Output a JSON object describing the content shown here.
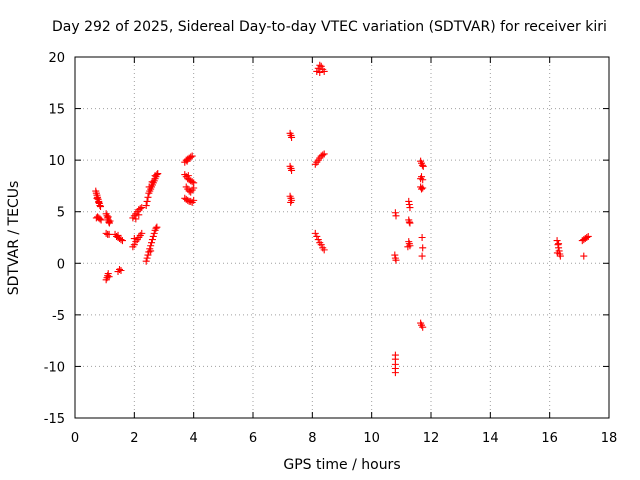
{
  "chart_data": {
    "type": "scatter",
    "title": "Day 292 of 2025, Sidereal Day-to-day VTEC variation (SDTVAR) for receiver kiri",
    "xlabel": "GPS time / hours",
    "ylabel": "SDTVAR / TECUs",
    "xlim": [
      0,
      18
    ],
    "ylim": [
      -15,
      20
    ],
    "xticks": [
      "0",
      "2",
      "4",
      "6",
      "8",
      "10",
      "12",
      "14",
      "16",
      "18"
    ],
    "yticks": [
      "-15",
      "-10",
      "-5",
      "0",
      "5",
      "10",
      "15",
      "20"
    ],
    "grid": true,
    "marker": "plus",
    "color": "#ff0000",
    "series": [
      {
        "points": [
          [
            0.7,
            7.0
          ],
          [
            0.72,
            6.8
          ],
          [
            0.74,
            6.6
          ],
          [
            0.76,
            6.4
          ],
          [
            0.78,
            6.2
          ],
          [
            0.8,
            6.0
          ],
          [
            0.82,
            5.8
          ],
          [
            0.84,
            5.6
          ],
          [
            0.86,
            5.5
          ],
          [
            0.74,
            6.3
          ],
          [
            0.8,
            5.9
          ],
          [
            0.72,
            4.4
          ],
          [
            0.76,
            4.5
          ],
          [
            0.8,
            4.4
          ],
          [
            0.84,
            4.3
          ],
          [
            0.88,
            4.2
          ],
          [
            1.05,
            4.8
          ],
          [
            1.08,
            4.6
          ],
          [
            1.1,
            4.4
          ],
          [
            1.12,
            4.2
          ],
          [
            1.14,
            4.0
          ],
          [
            1.16,
            3.9
          ],
          [
            1.18,
            4.1
          ],
          [
            1.12,
            4.5
          ],
          [
            1.05,
            2.9
          ],
          [
            1.1,
            2.8
          ],
          [
            1.15,
            2.8
          ],
          [
            1.05,
            -1.6
          ],
          [
            1.08,
            -1.4
          ],
          [
            1.1,
            -1.2
          ],
          [
            1.12,
            -1.0
          ],
          [
            1.15,
            -1.3
          ],
          [
            1.35,
            2.8
          ],
          [
            1.4,
            2.6
          ],
          [
            1.45,
            2.5
          ],
          [
            1.5,
            2.4
          ],
          [
            1.55,
            2.3
          ],
          [
            1.6,
            2.2
          ],
          [
            1.45,
            2.7
          ],
          [
            1.45,
            -0.8
          ],
          [
            1.5,
            -0.6
          ],
          [
            1.55,
            -0.7
          ],
          [
            1.95,
            4.4
          ],
          [
            2.0,
            4.6
          ],
          [
            2.05,
            4.8
          ],
          [
            2.1,
            5.0
          ],
          [
            2.15,
            5.2
          ],
          [
            2.2,
            5.3
          ],
          [
            2.25,
            5.4
          ],
          [
            2.05,
            4.3
          ],
          [
            2.15,
            4.7
          ],
          [
            1.95,
            1.6
          ],
          [
            2.0,
            1.8
          ],
          [
            2.05,
            2.1
          ],
          [
            2.1,
            2.3
          ],
          [
            2.15,
            2.5
          ],
          [
            2.2,
            2.7
          ],
          [
            2.25,
            2.9
          ],
          [
            2.0,
            2.4
          ],
          [
            2.4,
            5.6
          ],
          [
            2.43,
            6.0
          ],
          [
            2.46,
            6.4
          ],
          [
            2.49,
            6.8
          ],
          [
            2.52,
            7.0
          ],
          [
            2.55,
            7.2
          ],
          [
            2.58,
            7.4
          ],
          [
            2.61,
            7.6
          ],
          [
            2.64,
            7.8
          ],
          [
            2.67,
            8.0
          ],
          [
            2.7,
            8.2
          ],
          [
            2.73,
            8.4
          ],
          [
            2.76,
            8.6
          ],
          [
            2.79,
            8.7
          ],
          [
            2.5,
            7.4
          ],
          [
            2.6,
            7.9
          ],
          [
            2.7,
            8.5
          ],
          [
            2.4,
            0.2
          ],
          [
            2.43,
            0.5
          ],
          [
            2.46,
            0.8
          ],
          [
            2.49,
            1.1
          ],
          [
            2.52,
            1.4
          ],
          [
            2.55,
            1.7
          ],
          [
            2.58,
            2.0
          ],
          [
            2.61,
            2.3
          ],
          [
            2.64,
            2.6
          ],
          [
            2.67,
            2.9
          ],
          [
            2.7,
            3.2
          ],
          [
            2.73,
            3.4
          ],
          [
            2.76,
            3.5
          ],
          [
            2.55,
            1.2
          ],
          [
            3.7,
            9.8
          ],
          [
            3.75,
            10.0
          ],
          [
            3.8,
            10.1
          ],
          [
            3.85,
            10.2
          ],
          [
            3.9,
            10.3
          ],
          [
            3.95,
            10.4
          ],
          [
            3.78,
            9.9
          ],
          [
            3.7,
            8.6
          ],
          [
            3.75,
            8.4
          ],
          [
            3.8,
            8.2
          ],
          [
            3.85,
            8.1
          ],
          [
            3.9,
            8.0
          ],
          [
            3.95,
            7.9
          ],
          [
            4.0,
            7.8
          ],
          [
            3.82,
            8.5
          ],
          [
            3.75,
            7.4
          ],
          [
            3.8,
            7.2
          ],
          [
            3.85,
            7.0
          ],
          [
            3.9,
            6.9
          ],
          [
            3.95,
            7.1
          ],
          [
            4.0,
            7.3
          ],
          [
            3.7,
            6.3
          ],
          [
            3.75,
            6.2
          ],
          [
            3.8,
            6.1
          ],
          [
            3.85,
            6.0
          ],
          [
            3.9,
            6.0
          ],
          [
            3.95,
            5.9
          ],
          [
            4.0,
            6.1
          ],
          [
            7.25,
            12.6
          ],
          [
            7.28,
            12.4
          ],
          [
            7.3,
            12.2
          ],
          [
            7.25,
            9.4
          ],
          [
            7.28,
            9.2
          ],
          [
            7.3,
            9.0
          ],
          [
            7.25,
            6.5
          ],
          [
            7.28,
            6.3
          ],
          [
            7.3,
            6.1
          ],
          [
            7.27,
            5.9
          ],
          [
            8.15,
            18.6
          ],
          [
            8.2,
            18.9
          ],
          [
            8.25,
            19.2
          ],
          [
            8.3,
            19.1
          ],
          [
            8.35,
            18.8
          ],
          [
            8.4,
            18.6
          ],
          [
            8.25,
            18.5
          ],
          [
            8.1,
            9.6
          ],
          [
            8.15,
            9.8
          ],
          [
            8.2,
            10.0
          ],
          [
            8.25,
            10.2
          ],
          [
            8.3,
            10.4
          ],
          [
            8.35,
            10.5
          ],
          [
            8.4,
            10.6
          ],
          [
            8.1,
            2.9
          ],
          [
            8.15,
            2.6
          ],
          [
            8.2,
            2.3
          ],
          [
            8.25,
            2.0
          ],
          [
            8.3,
            1.8
          ],
          [
            8.35,
            1.5
          ],
          [
            8.4,
            1.3
          ],
          [
            10.8,
            4.9
          ],
          [
            10.82,
            4.6
          ],
          [
            10.78,
            0.8
          ],
          [
            10.8,
            0.5
          ],
          [
            10.82,
            0.3
          ],
          [
            10.8,
            -8.9
          ],
          [
            10.8,
            -9.3
          ],
          [
            10.8,
            -9.8
          ],
          [
            10.8,
            -10.2
          ],
          [
            10.8,
            -10.6
          ],
          [
            11.25,
            6.0
          ],
          [
            11.27,
            5.7
          ],
          [
            11.29,
            5.4
          ],
          [
            11.25,
            4.2
          ],
          [
            11.27,
            4.0
          ],
          [
            11.29,
            3.9
          ],
          [
            11.25,
            2.1
          ],
          [
            11.27,
            1.9
          ],
          [
            11.29,
            1.7
          ],
          [
            11.22,
            1.6
          ],
          [
            11.65,
            9.9
          ],
          [
            11.68,
            9.7
          ],
          [
            11.71,
            9.5
          ],
          [
            11.74,
            9.4
          ],
          [
            11.65,
            8.2
          ],
          [
            11.68,
            8.4
          ],
          [
            11.72,
            8.1
          ],
          [
            11.65,
            7.4
          ],
          [
            11.68,
            7.2
          ],
          [
            11.72,
            7.3
          ],
          [
            11.7,
            2.5
          ],
          [
            11.72,
            1.5
          ],
          [
            11.7,
            0.7
          ],
          [
            11.65,
            -5.8
          ],
          [
            11.68,
            -6.0
          ],
          [
            11.72,
            -6.2
          ],
          [
            16.25,
            2.2
          ],
          [
            16.28,
            1.8
          ],
          [
            16.3,
            1.5
          ],
          [
            16.32,
            1.2
          ],
          [
            16.34,
            0.9
          ],
          [
            16.36,
            0.7
          ],
          [
            16.3,
            1.9
          ],
          [
            16.26,
            1.0
          ],
          [
            17.1,
            2.2
          ],
          [
            17.15,
            2.3
          ],
          [
            17.2,
            2.4
          ],
          [
            17.25,
            2.5
          ],
          [
            17.3,
            2.6
          ],
          [
            17.15,
            0.7
          ]
        ]
      }
    ]
  }
}
